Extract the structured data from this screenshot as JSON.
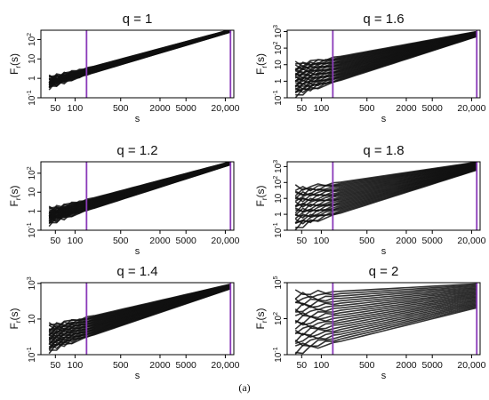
{
  "figure_caption": "(a)",
  "colors": {
    "trace": "#111111",
    "vline": "#8a3ab9",
    "axis": "#000000",
    "background": "#ffffff"
  },
  "chart_data": [
    {
      "type": "line",
      "title": "q = 1",
      "xlabel": "s",
      "ylabel": "F_r(s)",
      "xscale": "log",
      "yscale": "log",
      "xlim": [
        30,
        27000
      ],
      "ylim": [
        0.1,
        300
      ],
      "x_ticks": [
        50,
        100,
        500,
        2000,
        5000,
        20000
      ],
      "x_tick_labels": [
        "50",
        "100",
        "500",
        "2000",
        "5000",
        "20,000"
      ],
      "y_ticks": [
        0.1,
        1,
        10,
        100
      ],
      "y_tick_labels": [
        "10^-1",
        "1",
        "10",
        "10^2"
      ],
      "vlines": [
        150,
        24000
      ],
      "series_count": 30,
      "x": [
        40,
        24000
      ],
      "series_low": [
        0.4,
        240
      ],
      "series_high": [
        1.0,
        320
      ]
    },
    {
      "type": "line",
      "title": "q = 1.6",
      "xlabel": "s",
      "ylabel": "F_r(s)",
      "xscale": "log",
      "yscale": "log",
      "xlim": [
        30,
        27000
      ],
      "ylim": [
        0.1,
        1200
      ],
      "x_ticks": [
        50,
        100,
        500,
        2000,
        5000,
        20000
      ],
      "x_tick_labels": [
        "50",
        "100",
        "500",
        "2000",
        "5000",
        "20,000"
      ],
      "y_ticks": [
        0.1,
        1,
        10,
        100,
        1000
      ],
      "y_tick_labels": [
        "10^-1",
        "1",
        "10",
        "10^2",
        "10^3"
      ],
      "vlines": [
        150,
        24000
      ],
      "series_count": 30,
      "x": [
        40,
        24000
      ],
      "series_low": [
        0.15,
        500
      ],
      "series_high": [
        10,
        1000
      ]
    },
    {
      "type": "line",
      "title": "q = 1.2",
      "xlabel": "s",
      "ylabel": "F_r(s)",
      "xscale": "log",
      "yscale": "log",
      "xlim": [
        30,
        27000
      ],
      "ylim": [
        0.1,
        400
      ],
      "x_ticks": [
        50,
        100,
        500,
        2000,
        5000,
        20000
      ],
      "x_tick_labels": [
        "50",
        "100",
        "500",
        "2000",
        "5000",
        "20,000"
      ],
      "y_ticks": [
        0.1,
        1,
        10,
        100
      ],
      "y_tick_labels": [
        "10^-1",
        "1",
        "10",
        "10^2"
      ],
      "vlines": [
        150,
        24000
      ],
      "series_count": 30,
      "x": [
        40,
        24000
      ],
      "series_low": [
        0.25,
        280
      ],
      "series_high": [
        1.2,
        400
      ]
    },
    {
      "type": "line",
      "title": "q = 1.8",
      "xlabel": "s",
      "ylabel": "F_r(s)",
      "xscale": "log",
      "yscale": "log",
      "xlim": [
        30,
        27000
      ],
      "ylim": [
        0.1,
        2000
      ],
      "x_ticks": [
        50,
        100,
        500,
        2000,
        5000,
        20000
      ],
      "x_tick_labels": [
        "50",
        "100",
        "500",
        "2000",
        "5000",
        "20,000"
      ],
      "y_ticks": [
        0.1,
        1,
        10,
        100,
        1000
      ],
      "y_tick_labels": [
        "10^-1",
        "1",
        "10",
        "10^2",
        "10^3"
      ],
      "vlines": [
        150,
        24000
      ],
      "series_count": 26,
      "x": [
        40,
        24000
      ],
      "series_low": [
        0.15,
        600
      ],
      "series_high": [
        40,
        1900
      ]
    },
    {
      "type": "line",
      "title": "q = 1.4",
      "xlabel": "s",
      "ylabel": "F_r(s)",
      "xscale": "log",
      "yscale": "log",
      "xlim": [
        30,
        27000
      ],
      "ylim": [
        0.1,
        1100
      ],
      "x_ticks": [
        50,
        100,
        500,
        2000,
        5000,
        20000
      ],
      "x_tick_labels": [
        "50",
        "100",
        "500",
        "2000",
        "5000",
        "20,000"
      ],
      "y_ticks": [
        0.1,
        10,
        1000
      ],
      "y_tick_labels": [
        "10^-1",
        "10",
        "10^3"
      ],
      "vlines": [
        150,
        24000
      ],
      "series_count": 30,
      "x": [
        40,
        24000
      ],
      "series_low": [
        0.18,
        500
      ],
      "series_high": [
        4,
        900
      ]
    },
    {
      "type": "line",
      "title": "q = 2",
      "xlabel": "s",
      "ylabel": "F_r(s)",
      "xscale": "log",
      "yscale": "log",
      "xlim": [
        30,
        27000
      ],
      "ylim": [
        0.1,
        100000
      ],
      "x_ticks": [
        50,
        100,
        500,
        2000,
        5000,
        20000
      ],
      "x_tick_labels": [
        "50",
        "100",
        "500",
        "2000",
        "5000",
        "20,000"
      ],
      "y_ticks": [
        0.1,
        100,
        100000
      ],
      "y_tick_labels": [
        "10^-1",
        "10^2",
        "10^5"
      ],
      "vlines": [
        150,
        24000
      ],
      "series_count": 22,
      "x": [
        40,
        24000
      ],
      "series_low": [
        0.15,
        800
      ],
      "series_high": [
        12000,
        80000
      ]
    }
  ]
}
